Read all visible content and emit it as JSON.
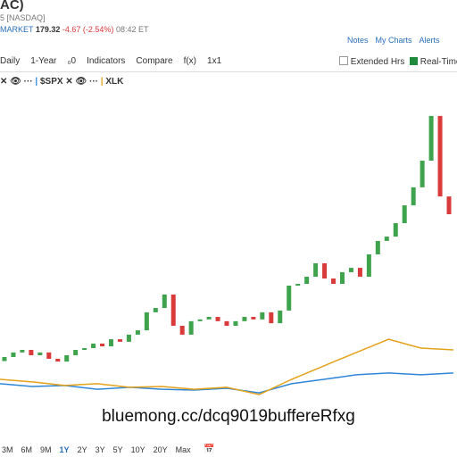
{
  "header": {
    "symbol": "AC)",
    "exchange": "5 [NASDAQ]",
    "market": "MARKET",
    "price": "179.32",
    "change": "-4.67 (-2.54%)",
    "time": "08:42 ET",
    "links": [
      "Notes",
      "My Charts",
      "Alerts"
    ]
  },
  "toolbar": {
    "left": [
      "Daily",
      "1-Year",
      "₀0",
      "Indicators",
      "Compare",
      "f(x)",
      "1x1"
    ],
    "right": [
      "Extended Hrs",
      "Real-Time"
    ]
  },
  "legend": [
    "$SPX",
    "XLK"
  ],
  "chart_data": {
    "type": "candlestick",
    "ylim": [
      100,
      230
    ],
    "open": [
      123.0,
      124.6,
      126.4,
      127.4,
      125.3,
      126.4,
      123.9,
      122.8,
      125.3,
      127.4,
      128.1,
      129.9,
      128.8,
      131.6,
      130.6,
      133.4,
      135.1,
      142.2,
      143.9,
      149.2,
      136.9,
      133.4,
      138.7,
      139.4,
      140.4,
      138.7,
      136.9,
      138.7,
      140.4,
      139.4,
      142.2,
      137.9,
      142.9,
      152.7,
      153.4,
      156.2,
      161.5,
      155.5,
      153.4,
      158.0,
      159.7,
      156.2,
      165.0,
      170.3,
      172.0,
      177.3,
      184.3,
      191.4,
      201.9,
      219.5,
      187.8
    ],
    "close": [
      124.6,
      126.4,
      127.4,
      125.3,
      126.4,
      123.9,
      122.8,
      125.3,
      127.4,
      128.1,
      129.9,
      128.8,
      131.6,
      130.6,
      133.4,
      135.1,
      142.2,
      143.9,
      149.2,
      136.9,
      133.4,
      138.7,
      139.4,
      140.4,
      138.7,
      136.9,
      138.7,
      140.4,
      139.4,
      142.2,
      137.9,
      142.9,
      152.7,
      153.4,
      156.2,
      161.5,
      155.5,
      153.4,
      158.0,
      159.7,
      156.2,
      165.0,
      170.3,
      172.0,
      177.3,
      184.3,
      191.4,
      201.9,
      219.5,
      187.8,
      180.8
    ],
    "up_color": "#3fa34d",
    "down_color": "#d93a3a",
    "series": [
      {
        "name": "$SPX",
        "color": "#2f86d6",
        "values": [
          114.1,
          113.0,
          113.4,
          111.9,
          112.7,
          111.9,
          111.6,
          112.3,
          110.5,
          114.1,
          115.8,
          117.6,
          118.3,
          117.6,
          118.3
        ]
      },
      {
        "name": "XLK",
        "color": "#e3a21a",
        "values": [
          115.8,
          114.8,
          113.4,
          114.1,
          112.7,
          113.0,
          111.9,
          112.7,
          109.8,
          115.8,
          121.1,
          126.4,
          131.6,
          128.1,
          127.4
        ]
      }
    ]
  },
  "watermark": "bluemong.cc/dcq9019buffereRfxg",
  "ranges": [
    "3M",
    "6M",
    "9M",
    "1Y",
    "2Y",
    "3Y",
    "5Y",
    "10Y",
    "20Y",
    "Max"
  ],
  "active_range": "1Y"
}
